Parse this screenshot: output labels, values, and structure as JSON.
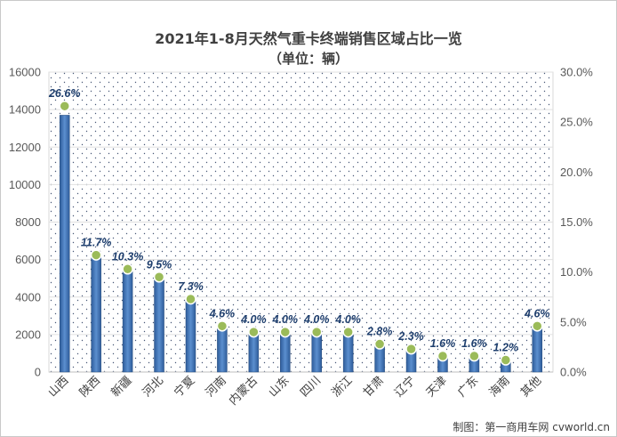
{
  "chart_data": {
    "type": "bar",
    "title": "2021年1-8月天然气重卡终端销售区域占比一览",
    "subtitle": "（单位：辆）",
    "categories": [
      "山西",
      "陕西",
      "新疆",
      "河北",
      "宁夏",
      "河南",
      "内蒙古",
      "山东",
      "四川",
      "浙江",
      "甘肃",
      "辽宁",
      "天津",
      "广东",
      "海南",
      "其他"
    ],
    "series": [
      {
        "type": "bar",
        "axis": "left",
        "values": [
          13700,
          6100,
          5350,
          4900,
          3800,
          2400,
          2050,
          2050,
          2050,
          2050,
          1450,
          1180,
          820,
          820,
          620,
          2400
        ]
      },
      {
        "type": "line-markers",
        "axis": "right",
        "values": [
          26.6,
          11.7,
          10.3,
          9.5,
          7.3,
          4.6,
          4.0,
          4.0,
          4.0,
          4.0,
          2.8,
          2.3,
          1.6,
          1.6,
          1.2,
          4.6
        ],
        "labels": [
          "26.6%",
          "11.7%",
          "10.3%",
          "9.5%",
          "7.3%",
          "4.6%",
          "4.0%",
          "4.0%",
          "4.0%",
          "4.0%",
          "2.8%",
          "2.3%",
          "1.6%",
          "1.6%",
          "1.2%",
          "4.6%"
        ]
      }
    ],
    "y_left": {
      "min": 0,
      "max": 16000,
      "ticks": [
        "0",
        "2000",
        "4000",
        "6000",
        "8000",
        "10000",
        "12000",
        "14000",
        "16000"
      ]
    },
    "y_right": {
      "min": 0,
      "max": 30,
      "ticks": [
        "0.0%",
        "5.0%",
        "10.0%",
        "15.0%",
        "20.0%",
        "25.0%",
        "30.0%"
      ]
    },
    "grid": "horizontal",
    "legend": "none",
    "colors": {
      "bar_dark": "#2e5c9a",
      "bar_light": "#5b8fcf",
      "marker": "#9bbb59",
      "marker_border": "#ffffff",
      "label": "#1f3f6e",
      "plot_bg": "#ffffff",
      "dot": "#4a5a78"
    }
  },
  "credit": "制图：第一商用车网 cvworld.cn"
}
